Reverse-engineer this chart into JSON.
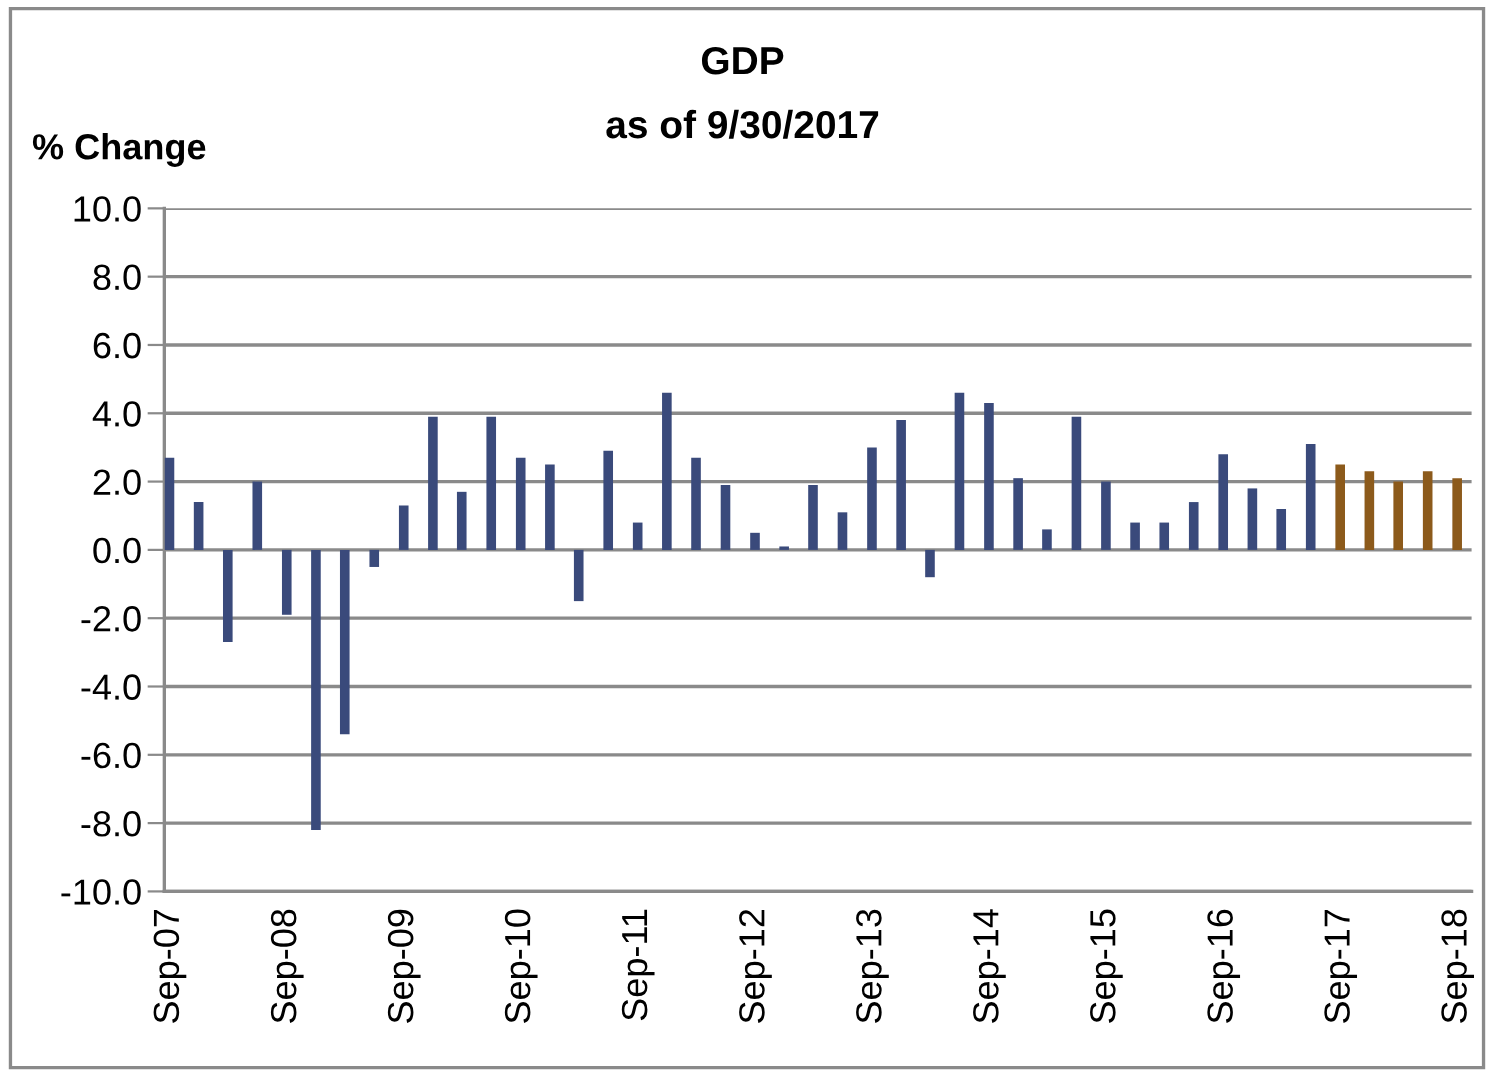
{
  "chart_data": {
    "type": "bar",
    "title": "GDP",
    "subtitle": "as of 9/30/2017",
    "ylabel": "% Change",
    "series": [
      {
        "color": "#3a4a7b",
        "x": [
          "2007-09",
          "2007-12",
          "2008-03",
          "2008-06",
          "2008-09",
          "2008-12",
          "2009-03",
          "2009-06",
          "2009-09",
          "2009-12",
          "2010-03",
          "2010-06",
          "2010-09",
          "2010-12",
          "2011-03",
          "2011-06",
          "2011-09",
          "2011-12",
          "2012-03",
          "2012-06",
          "2012-09",
          "2012-12",
          "2013-03",
          "2013-06",
          "2013-09",
          "2013-12",
          "2014-03",
          "2014-06",
          "2014-09",
          "2014-12",
          "2015-03",
          "2015-06",
          "2015-09",
          "2015-12",
          "2016-03",
          "2016-06",
          "2016-09",
          "2016-12",
          "2017-03",
          "2017-06"
        ],
        "values": [
          2.7,
          1.4,
          -2.7,
          2.0,
          -1.9,
          -8.2,
          -5.4,
          -0.5,
          1.3,
          3.9,
          1.7,
          3.9,
          2.7,
          2.5,
          -1.5,
          2.9,
          0.8,
          4.6,
          2.7,
          1.9,
          0.5,
          0.1,
          1.9,
          1.1,
          3.0,
          3.8,
          -0.8,
          4.6,
          4.3,
          2.1,
          0.6,
          3.9,
          2.0,
          0.8,
          0.8,
          1.4,
          2.8,
          1.8,
          1.2,
          3.1
        ]
      },
      {
        "color": "#8c5a1b",
        "x": [
          "2017-09",
          "2017-12",
          "2018-03",
          "2018-06",
          "2018-09"
        ],
        "values": [
          2.5,
          2.3,
          2.0,
          2.3,
          2.1
        ]
      }
    ],
    "xlim": [
      "2007-08-16",
      "2018-10-16"
    ],
    "xticks": [
      {
        "value": "2007-09",
        "label": "Sep-07"
      },
      {
        "value": "2008-09",
        "label": "Sep-08"
      },
      {
        "value": "2009-09",
        "label": "Sep-09"
      },
      {
        "value": "2010-09",
        "label": "Sep-10"
      },
      {
        "value": "2011-09",
        "label": "Sep-11"
      },
      {
        "value": "2012-09",
        "label": "Sep-12"
      },
      {
        "value": "2013-09",
        "label": "Sep-13"
      },
      {
        "value": "2014-09",
        "label": "Sep-14"
      },
      {
        "value": "2015-09",
        "label": "Sep-15"
      },
      {
        "value": "2016-09",
        "label": "Sep-16"
      },
      {
        "value": "2017-09",
        "label": "Sep-17"
      },
      {
        "value": "2018-09",
        "label": "Sep-18"
      }
    ],
    "ylim": [
      -10,
      10
    ],
    "yticks": [
      {
        "value": -10,
        "label": "-10.0"
      },
      {
        "value": -8,
        "label": "-8.0"
      },
      {
        "value": -6,
        "label": "-6.0"
      },
      {
        "value": -4,
        "label": "-4.0"
      },
      {
        "value": -2,
        "label": "-2.0"
      },
      {
        "value": 0,
        "label": "0.0"
      },
      {
        "value": 2,
        "label": "2.0"
      },
      {
        "value": 4,
        "label": "4.0"
      },
      {
        "value": 6,
        "label": "6.0"
      },
      {
        "value": 8,
        "label": "8.0"
      },
      {
        "value": 10,
        "label": "10.0"
      }
    ],
    "grid": "y"
  }
}
